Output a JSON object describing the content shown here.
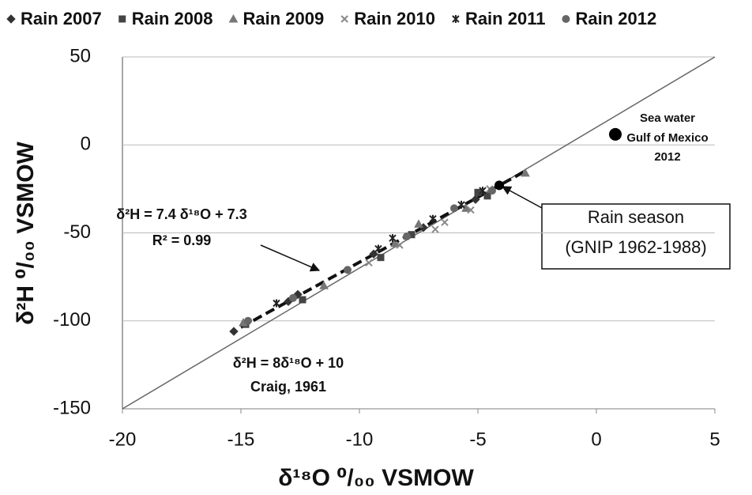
{
  "chart_data": {
    "type": "scatter",
    "x_label": "δ¹⁸O ⁰/₀₀ VSMOW",
    "y_label": "δ²H ⁰/₀₀ VSMOW",
    "xlim": [
      -20,
      5
    ],
    "ylim": [
      -150,
      50
    ],
    "xticks": [
      -20,
      -15,
      -10,
      -5,
      0,
      5
    ],
    "yticks": [
      -150,
      -100,
      -50,
      0,
      50
    ],
    "grid": true,
    "series": [
      {
        "name": "Rain 2007",
        "color": "#333333",
        "marker": "diamond",
        "x": [
          -15.3,
          -13,
          -12.6,
          -9.4,
          -7.3,
          -5.1
        ],
        "values": [
          -106,
          -89,
          -85,
          -62,
          -47,
          -31
        ]
      },
      {
        "name": "Rain 2008",
        "color": "#444444",
        "marker": "square",
        "x": [
          -14.8,
          -12.4,
          -9.1,
          -7.8,
          -5.0,
          -4.6
        ],
        "values": [
          -102,
          -88,
          -64,
          -51,
          -27,
          -29
        ]
      },
      {
        "name": "Rain 2009",
        "color": "#777777",
        "marker": "triangle",
        "x": [
          -14.9,
          -11.5,
          -8.5,
          -7.5,
          -5.5,
          -3.0
        ],
        "values": [
          -101,
          -80,
          -56,
          -45,
          -36,
          -16
        ]
      },
      {
        "name": "Rain 2010",
        "color": "#888888",
        "marker": "x",
        "x": [
          -9.6,
          -8.3,
          -6.8,
          -6.4,
          -5.3,
          -4.5
        ],
        "values": [
          -67,
          -57,
          -48,
          -44,
          -37,
          -25
        ]
      },
      {
        "name": "Rain 2011",
        "color": "#222222",
        "marker": "star",
        "x": [
          -13.5,
          -9.2,
          -8.6,
          -6.9,
          -5.7,
          -4.8
        ],
        "values": [
          -90,
          -59,
          -53,
          -42,
          -34,
          -26
        ]
      },
      {
        "name": "Rain 2012",
        "color": "#666666",
        "marker": "circle",
        "x": [
          -14.7,
          -12.8,
          -10.5,
          -8.0,
          -6.0,
          -4.4
        ],
        "values": [
          -100,
          -87,
          -71,
          -52,
          -36,
          -26
        ]
      }
    ],
    "special_points": [
      {
        "x": 0.8,
        "y": 6,
        "label": [
          "Sea water",
          "Gulf of Mexico",
          "2012"
        ]
      },
      {
        "x": -4.1,
        "y": -23,
        "label": [
          "Rain season",
          "(GNIP 1962-1988)"
        ]
      }
    ],
    "lines": [
      {
        "x": [
          -20,
          5
        ],
        "y": [
          -150,
          50
        ],
        "style": "solid",
        "label": [
          "δ²H  = 8δ¹⁸O  + 10",
          "Craig, 1961"
        ]
      },
      {
        "x": [
          -15,
          -3
        ],
        "y": [
          -103.7,
          -14.9
        ],
        "style": "dashed",
        "label": [
          "δ²H = 7.4 δ¹⁸O + 7.3",
          "R² = 0.99"
        ]
      }
    ]
  }
}
